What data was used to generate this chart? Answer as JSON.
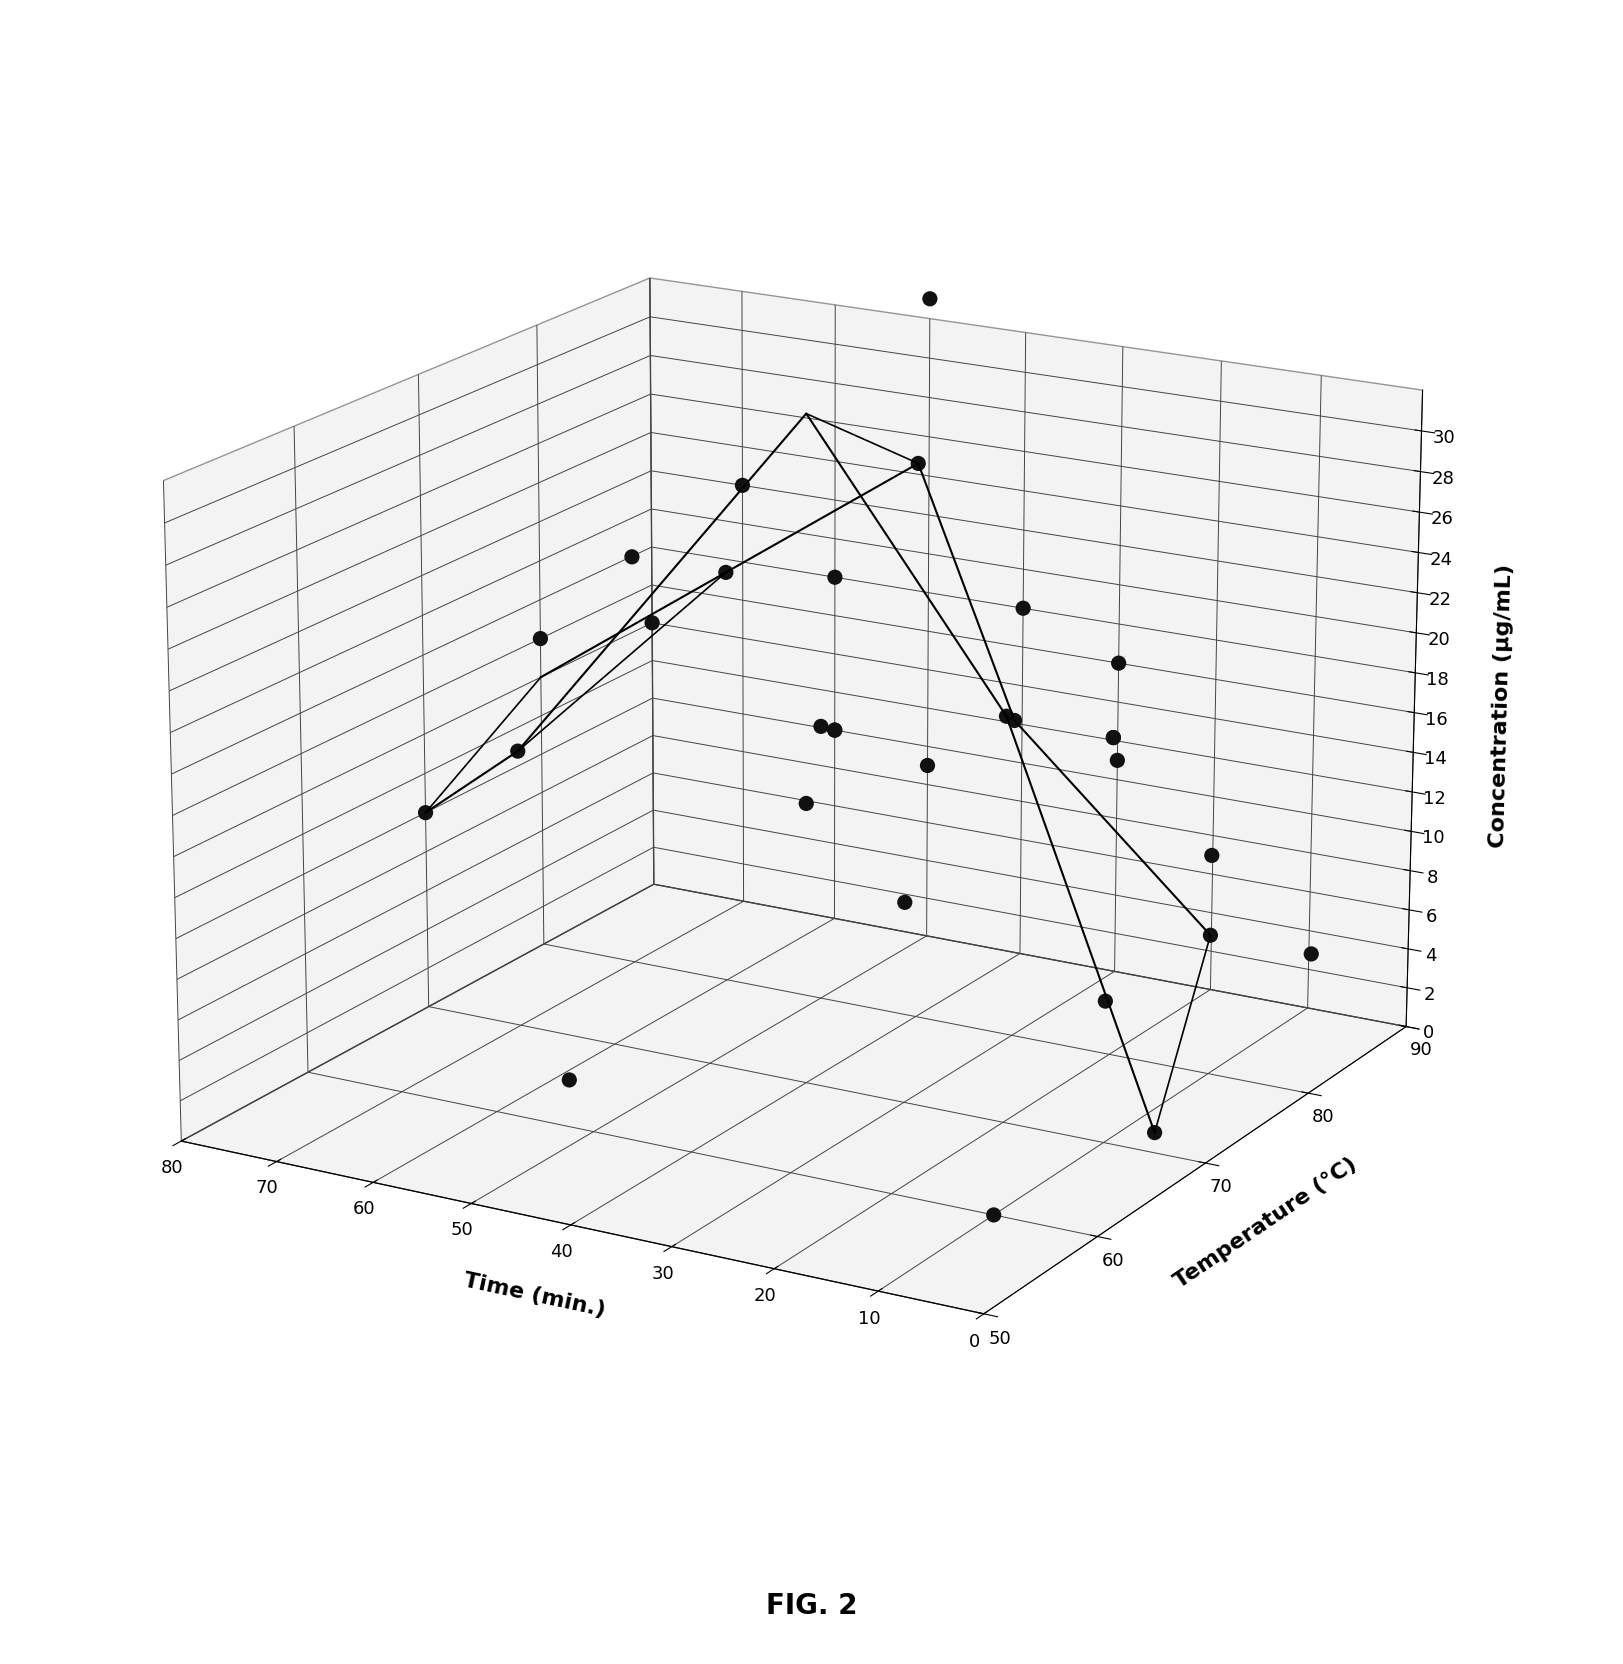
{
  "title": "FIG. 2",
  "xlabel": "Time (min.)",
  "ylabel": "Temperature (°C)",
  "zlabel": "Concentration (μg/mL)",
  "time_ticks": [
    0,
    10,
    20,
    30,
    40,
    50,
    60,
    70,
    80
  ],
  "temp_ticks": [
    50,
    60,
    70,
    80,
    90
  ],
  "conc_ticks": [
    0,
    2,
    4,
    6,
    8,
    10,
    12,
    14,
    16,
    18,
    20,
    22,
    24,
    26,
    28,
    30
  ],
  "zlim": [
    0,
    32
  ],
  "xlim_lo": 0,
  "xlim_hi": 80,
  "ylim_lo": 50,
  "ylim_hi": 90,
  "line1_time": [
    80,
    70,
    40,
    20,
    5
  ],
  "line1_temp": [
    70,
    70,
    70,
    70,
    70
  ],
  "line1_conc": [
    10,
    14,
    33,
    20,
    1
  ],
  "line2_time": [
    80,
    60,
    40,
    30,
    10
  ],
  "line2_temp": [
    80,
    80,
    80,
    80,
    80
  ],
  "line2_conc": [
    14,
    21,
    28,
    16,
    7
  ],
  "cross_connections": [
    [
      80,
      70,
      10,
      80,
      80,
      14
    ],
    [
      70,
      70,
      14,
      60,
      80,
      21
    ],
    [
      40,
      70,
      33,
      40,
      80,
      28
    ],
    [
      20,
      70,
      20,
      30,
      80,
      16
    ],
    [
      5,
      70,
      1,
      10,
      80,
      7
    ]
  ],
  "scatter_time": [
    80,
    70,
    60,
    50,
    40,
    30,
    20,
    10,
    5,
    10,
    60,
    40,
    30,
    20,
    10,
    0,
    10,
    20,
    30,
    40,
    50,
    60,
    70,
    80,
    80,
    70,
    60,
    50,
    40,
    30
  ],
  "scatter_temp": [
    70,
    70,
    80,
    90,
    70,
    90,
    70,
    70,
    70,
    80,
    90,
    80,
    80,
    80,
    80,
    80,
    60,
    80,
    90,
    90,
    90,
    90,
    90,
    80,
    90,
    80,
    90,
    80,
    50,
    70
  ],
  "scatter_conc": [
    10,
    14,
    21,
    33,
    14,
    16,
    20,
    7,
    1,
    7,
    18,
    28,
    16,
    16,
    11,
    7,
    0,
    16,
    11,
    18,
    9,
    10,
    22,
    16,
    14,
    21,
    10,
    14,
    7,
    10
  ],
  "background_color": "#ffffff",
  "line_color": "#000000",
  "scatter_color": "#111111",
  "elev": 18,
  "azim": -60
}
